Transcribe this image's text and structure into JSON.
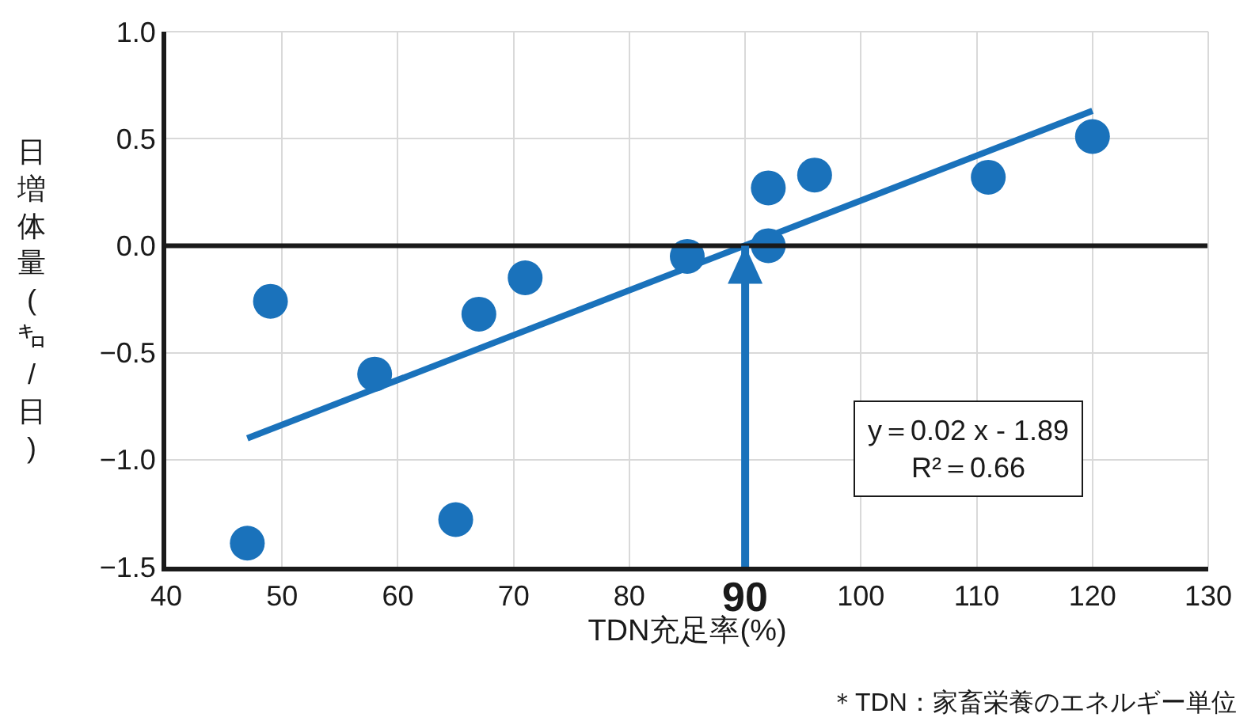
{
  "chart_data": {
    "type": "scatter",
    "xlabel": "TDN充足率(%)",
    "ylabel": "日増体量(㌔/日)",
    "x": [
      47,
      49,
      58,
      65,
      67,
      71,
      85,
      92,
      92,
      96,
      111,
      120
    ],
    "series": [
      {
        "color": "#1a72bb",
        "marker": "circle",
        "values": [
          -1.39,
          -0.26,
          -0.6,
          -1.28,
          -0.32,
          -0.15,
          -0.05,
          0.27,
          0,
          0.33,
          0.32,
          0.51
        ]
      },
      {
        "type": "line",
        "marker": "none",
        "color": "#1a72bb",
        "x": [
          47,
          120
        ],
        "values": [
          -0.9,
          0.63
        ]
      }
    ],
    "xlim": [
      40,
      130
    ],
    "xticks": [
      40,
      50,
      60,
      70,
      80,
      {
        "value": 90,
        "label": null
      },
      100,
      110,
      120,
      130
    ],
    "ylim": [
      -1.5,
      1.0
    ],
    "yticks": [
      {
        "value": -1.5,
        "label": "−1.5"
      },
      {
        "value": -1,
        "label": "−1.0"
      },
      {
        "value": -0.5,
        "label": "−0.5"
      },
      {
        "value": 0,
        "label": "0.0"
      },
      {
        "value": 0.5,
        "label": "0.5"
      },
      {
        "value": 1,
        "label": "1.0"
      }
    ],
    "ref_lines": [
      {
        "axis": "y",
        "value": 0,
        "color": "#1a1a1a"
      },
      {
        "axis": "x",
        "value": 90,
        "label": "90",
        "color": "#1a72bb"
      }
    ],
    "annotations": [
      "y＝0.02 x - 1.89",
      "R²＝0.66",
      "＊TDN：家畜栄養のエネルギー単位"
    ],
    "grid": true,
    "line_style": "solid"
  }
}
